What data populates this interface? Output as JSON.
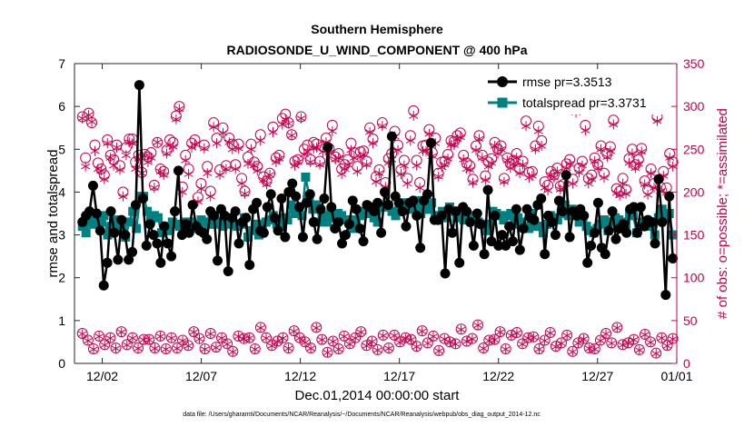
{
  "chart_data": {
    "type": "line",
    "title": "Southern Hemisphere",
    "subtitle": "RADIOSONDE_U_WIND_COMPONENT @ 400 hPa",
    "xlabel": "Dec.01,2014 00:00:00 start",
    "ylabel": "rmse and totalspread",
    "y2label": "# of obs: o=possible; *=assimilated",
    "xlim": [
      0.6,
      31.0
    ],
    "ylim": [
      0,
      7
    ],
    "y2lim": [
      0,
      350
    ],
    "x_ticks": [
      {
        "value": 2,
        "label": "12/02"
      },
      {
        "value": 7,
        "label": "12/07"
      },
      {
        "value": 12,
        "label": "12/12"
      },
      {
        "value": 17,
        "label": "12/17"
      },
      {
        "value": 22,
        "label": "12/22"
      },
      {
        "value": 27,
        "label": "12/27"
      },
      {
        "value": 32,
        "label": "01/01"
      }
    ],
    "y_ticks": [
      "0",
      "1",
      "2",
      "3",
      "4",
      "5",
      "6",
      "7"
    ],
    "y2_ticks": [
      "0",
      "50",
      "100",
      "150",
      "200",
      "250",
      "300",
      "350"
    ],
    "colors": {
      "rmse": "#000000",
      "spread": "#008080",
      "obs": "#c8004e"
    },
    "series": [
      {
        "name": "rmse pr=3.3513",
        "values": [
          3.3,
          3.45,
          3.55,
          4.15,
          3.5,
          3.1,
          1.82,
          2.35,
          3.55,
          3.05,
          2.42,
          3.35,
          3.0,
          2.42,
          2.6,
          3.7,
          6.5,
          3.85,
          2.75,
          3.25,
          3.0,
          2.8,
          2.35,
          3.2,
          2.8,
          2.5,
          3.55,
          4.5,
          3.0,
          3.25,
          3.05,
          3.7,
          3.2,
          3.1,
          3.05,
          2.9,
          3.55,
          3.45,
          2.4,
          3.6,
          3.45,
          2.15,
          3.4,
          3.55,
          2.8,
          3.3,
          3.4,
          2.3,
          3.6,
          3.75,
          3.1,
          3.05,
          3.65,
          3.95,
          3.4,
          3.1,
          3.85,
          2.95,
          4.0,
          4.2,
          3.9,
          3.65,
          2.95,
          3.75,
          3.95,
          3.3,
          2.9,
          3.6,
          3.85,
          5.05,
          3.65,
          3.15,
          3.3,
          2.8,
          3.0,
          3.25,
          3.8,
          3.6,
          3.15,
          2.85,
          3.7,
          3.65,
          3.55,
          3.75,
          3.05,
          4.0,
          3.7,
          5.3,
          3.9,
          3.75,
          3.55,
          3.2,
          3.75,
          3.8,
          3.45,
          2.7,
          3.8,
          3.95,
          5.15,
          3.35,
          3.35,
          3.45,
          2.1,
          3.6,
          3.05,
          3.55,
          2.35,
          3.65,
          3.55,
          3.3,
          2.75,
          3.5,
          3.25,
          2.55,
          4.05,
          2.85,
          3.45,
          2.75,
          3.0,
          2.75,
          3.2,
          2.85,
          3.6,
          2.65,
          3.15,
          3.6,
          3.4,
          3.35,
          3.7,
          3.85,
          2.55,
          3.45,
          3.3,
          3.0,
          3.8,
          3.55,
          4.4,
          2.95,
          3.55,
          3.45,
          3.6,
          3.45,
          2.35,
          2.75,
          3.05,
          3.75,
          2.7,
          2.55,
          3.1,
          3.55,
          2.9,
          3.15,
          3.25,
          3.05,
          3.6,
          3.65,
          3.05,
          3.65,
          3.2,
          3.35,
          3.3,
          2.8,
          4.3,
          3.3,
          1.6,
          3.9,
          2.45
        ],
        "marker": "circle"
      },
      {
        "name": "totalspread pr=3.3731",
        "values": [
          3.2,
          3.05,
          3.4,
          3.25,
          3.35,
          3.3,
          3.45,
          3.0,
          3.2,
          3.35,
          3.1,
          3.2,
          2.95,
          3.3,
          3.55,
          3.15,
          3.9,
          3.9,
          3.55,
          3.35,
          3.45,
          3.4,
          3.05,
          3.2,
          3.1,
          3.3,
          3.25,
          3.2,
          3.05,
          3.3,
          3.3,
          3.15,
          3.25,
          3.35,
          3.3,
          3.25,
          3.35,
          3.25,
          3.3,
          3.2,
          3.25,
          3.4,
          3.25,
          3.2,
          3.25,
          3.4,
          2.95,
          3.1,
          3.25,
          3.0,
          3.25,
          3.3,
          3.35,
          3.45,
          3.25,
          3.2,
          3.4,
          3.35,
          3.7,
          3.5,
          3.55,
          3.45,
          4.35,
          3.9,
          3.6,
          3.7,
          3.3,
          3.45,
          3.3,
          3.5,
          3.4,
          3.5,
          3.45,
          3.35,
          3.35,
          3.15,
          3.35,
          3.45,
          3.55,
          3.5,
          3.6,
          3.4,
          3.3,
          3.65,
          3.65,
          3.7,
          3.55,
          3.45,
          3.7,
          3.65,
          3.75,
          3.6,
          3.65,
          3.8,
          3.5,
          3.6,
          3.6,
          3.75,
          3.45,
          3.45,
          3.55,
          3.4,
          3.65,
          3.55,
          3.4,
          3.5,
          3.35,
          3.35,
          3.45,
          3.4,
          3.3,
          3.25,
          3.1,
          3.25,
          3.55,
          3.5,
          3.45,
          3.35,
          3.45,
          3.5,
          3.25,
          3.4,
          3.3,
          3.2,
          3.15,
          3.5,
          3.2,
          3.2,
          3.05,
          3.25,
          3.45,
          3.4,
          3.35,
          3.5,
          3.7,
          3.45,
          3.6,
          3.45,
          3.3,
          3.35,
          3.2,
          3.1,
          3.05,
          3.15,
          3.25,
          3.35,
          3.1,
          3.3,
          3.4,
          3.35,
          3.3,
          3.25,
          3.5,
          3.45,
          3.05,
          3.2,
          3.3,
          3.25,
          3.2,
          3.0,
          3.4,
          3.6,
          3.45,
          3.5,
          3.0
        ],
        "marker": "square"
      },
      {
        "name": "obs possible (o)",
        "axis": "right",
        "values": [
          288,
          240,
          292,
          281,
          255,
          234,
          227,
          220,
          261,
          243,
          238,
          255,
          231,
          200,
          252,
          262,
          262,
          235,
          243,
          223,
          244,
          241,
          246,
          208,
          258,
          227,
          224,
          249,
          261,
          258,
          289,
          300,
          206,
          243,
          227,
          257,
          261,
          194,
          210,
          255,
          230,
          201,
          281,
          263,
          226,
          275,
          231,
          263,
          256,
          232,
          256,
          216,
          201,
          241,
          256,
          235,
          230,
          267,
          218,
          213,
          222,
          276,
          240,
          243,
          286,
          291,
          281,
          267,
          236,
          238,
          288,
          250,
          255,
          238,
          258,
          256,
          236,
          253,
          263,
          251,
          278,
          241,
          245,
          227,
          232,
          238,
          257,
          246,
          230,
          247,
          248,
          236,
          275,
          262,
          218,
          226,
          281,
          211,
          239,
          245,
          271,
          255,
          226,
          237,
          216,
          266,
          295,
          237,
          211,
          254,
          255,
          273,
          246,
          263,
          222,
          235,
          236,
          244,
          260,
          259,
          266,
          269,
          243,
          234,
          231,
          215,
          254,
          266,
          243,
          219,
          235,
          239,
          258,
          250,
          254,
          216,
          240,
          233,
          237,
          245,
          227,
          236,
          283,
          223,
          224,
          254,
          277,
          260,
          212,
          208,
          224,
          220,
          228,
          207,
          209,
          233,
          238,
          215,
          298,
          228,
          236,
          278,
          216,
          220,
          240,
          232,
          254,
          222,
          245,
          253,
          284,
          204,
          201,
          216,
          203,
          239,
          250,
          232,
          238,
          251,
          213,
          203,
          227,
          210,
          288,
          206,
          224,
          205,
          245,
          235
        ],
        "marker": "circle-open"
      },
      {
        "name": "obs assimilated (*)",
        "axis": "right",
        "values": [
          286,
          230,
          290,
          282,
          248,
          227,
          225,
          215,
          257,
          240,
          231,
          252,
          226,
          195,
          243,
          258,
          257,
          227,
          239,
          222,
          242,
          235,
          240,
          205,
          258,
          224,
          220,
          245,
          255,
          253,
          285,
          297,
          200,
          237,
          221,
          252,
          256,
          189,
          204,
          251,
          222,
          195,
          276,
          257,
          220,
          269,
          227,
          258,
          250,
          227,
          251,
          210,
          198,
          233,
          250,
          231,
          225,
          260,
          214,
          209,
          220,
          270,
          235,
          239,
          279,
          285,
          280,
          266,
          231,
          235,
          286,
          244,
          247,
          235,
          251,
          252,
          232,
          247,
          258,
          246,
          271,
          238,
          240,
          221,
          227,
          232,
          249,
          240,
          224,
          241,
          244,
          232,
          270,
          257,
          212,
          222,
          277,
          206,
          234,
          238,
          265,
          249,
          221,
          231,
          210,
          260,
          289,
          231,
          205,
          248,
          248,
          268,
          242,
          257,
          218,
          229,
          232,
          239,
          255,
          255,
          262,
          264,
          238,
          227,
          226,
          211,
          249,
          262,
          240,
          214,
          230,
          234,
          254,
          245,
          250,
          212,
          237,
          228,
          233,
          240,
          222,
          232,
          277,
          217,
          219,
          250,
          271,
          254,
          205,
          202,
          220,
          217,
          224,
          203,
          205,
          228,
          233,
          210,
          293,
          223,
          231,
          272,
          210,
          215,
          236,
          228,
          250,
          217,
          241,
          248,
          279,
          199,
          196,
          210,
          198,
          234,
          245,
          228,
          233,
          247,
          209,
          197,
          222,
          205,
          283,
          201,
          219,
          199,
          240,
          230
        ],
        "marker": "asterisk"
      },
      {
        "name": "obs lower possible (o)",
        "axis": "right",
        "values": [
          35,
          27,
          17,
          32,
          22,
          30,
          18,
          37,
          22,
          30,
          18,
          28,
          28,
          18,
          32,
          17,
          30,
          18,
          27,
          21,
          37,
          29,
          17,
          35,
          19,
          30,
          23,
          14,
          32,
          29,
          30,
          17,
          42,
          30,
          21,
          26,
          30,
          18,
          38,
          30,
          25,
          18,
          42,
          28,
          13,
          26,
          17,
          32,
          23,
          30,
          37,
          21,
          26,
          16,
          33,
          18,
          33,
          25,
          30,
          28,
          20,
          38,
          24,
          32,
          15,
          29,
          25,
          23,
          40,
          26,
          29,
          45,
          18,
          27,
          28,
          37,
          17,
          33,
          36,
          23,
          30,
          31,
          17,
          27,
          36,
          20,
          24,
          33,
          14,
          24,
          29,
          18,
          17,
          27,
          35,
          24,
          42,
          22,
          24,
          28,
          16,
          34,
          25,
          12,
          30,
          21,
          29
        ],
        "marker": "circle-open"
      }
    ]
  },
  "legend": {
    "rmse_label": "rmse pr=3.3513",
    "spread_label": "totalspread pr=3.3731"
  },
  "footnote": "data file: /Users/gharamti/Documents/NCAR/Reanalysis/~/Documents/NCAR/Reanalysis/webpub/obs_diag_output_2014-12.nc"
}
